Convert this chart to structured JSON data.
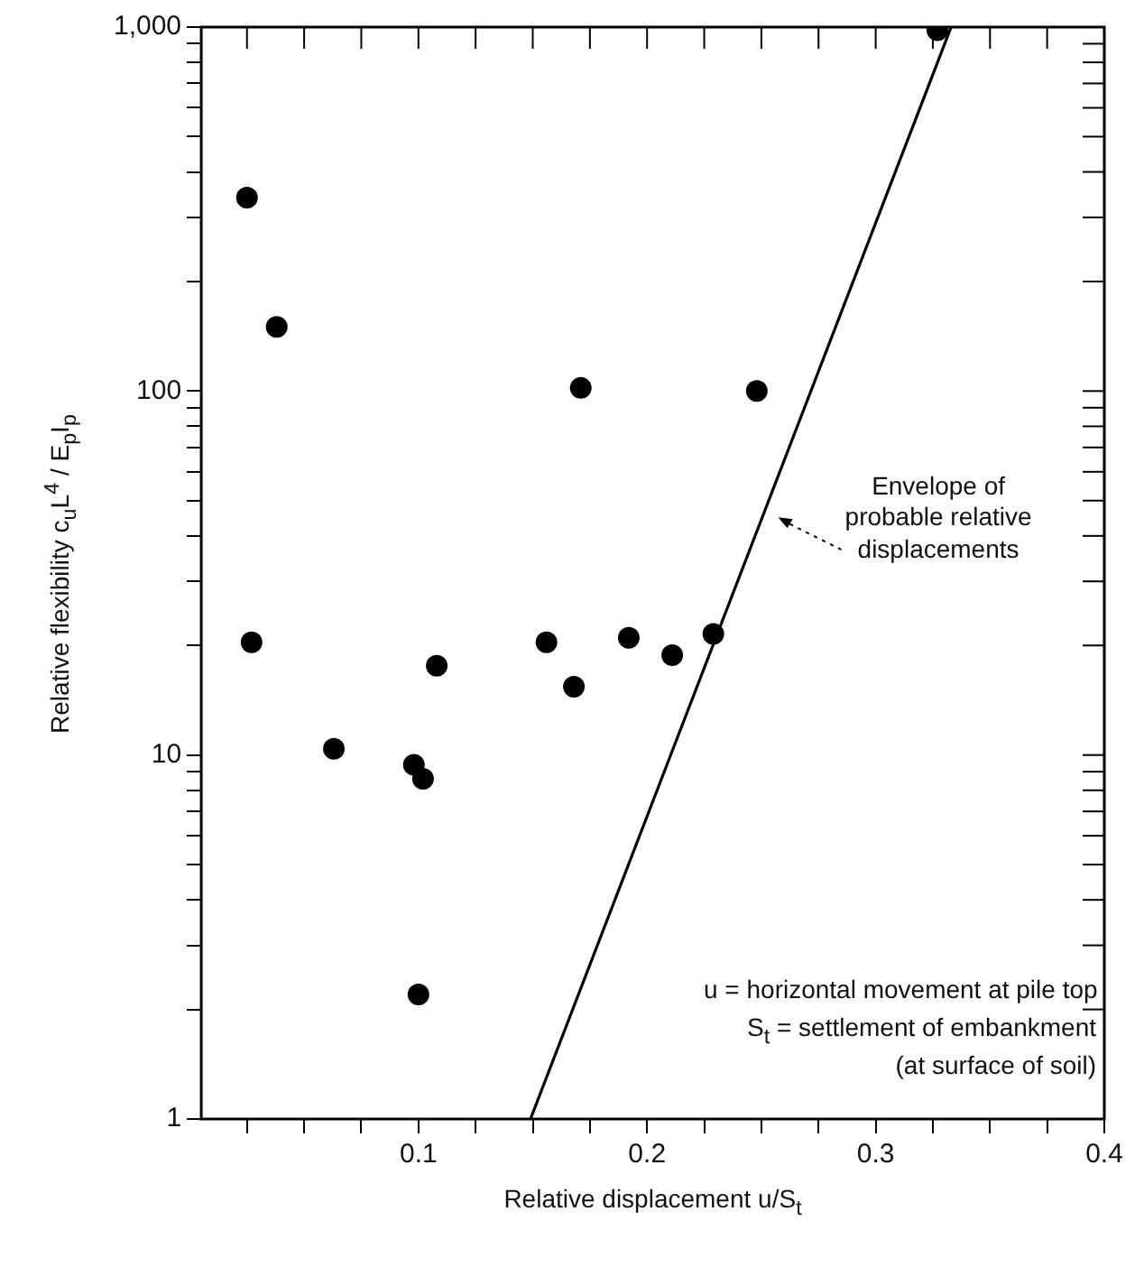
{
  "chart_data": {
    "type": "scatter",
    "xlabel": "Relative displacement u/S$_{t}$",
    "ylabel": "Relative flexibility  c$_{u}$L$^{4}$ / E$_{p}$I$_{p}$",
    "log": "y",
    "marker": "circle",
    "grid": false,
    "xlim": [
      0.005,
      0.4
    ],
    "ylim": [
      1,
      1000
    ],
    "xticks": [
      {
        "value": 0.025,
        "label": null
      },
      {
        "value": 0.05,
        "label": null
      },
      {
        "value": 0.075,
        "label": null
      },
      0.1,
      {
        "value": 0.125,
        "label": null
      },
      {
        "value": 0.15,
        "label": null
      },
      {
        "value": 0.175,
        "label": null
      },
      0.2,
      {
        "value": 0.225,
        "label": null
      },
      {
        "value": 0.25,
        "label": null
      },
      {
        "value": 0.275,
        "label": null
      },
      0.3,
      {
        "value": 0.325,
        "label": null
      },
      {
        "value": 0.35,
        "label": null
      },
      {
        "value": 0.375,
        "label": null
      },
      0.4
    ],
    "yticks": [
      1,
      {
        "value": 2,
        "label": null
      },
      {
        "value": 3,
        "label": null
      },
      {
        "value": 4,
        "label": null
      },
      {
        "value": 5,
        "label": null
      },
      {
        "value": 6,
        "label": null
      },
      {
        "value": 7,
        "label": null
      },
      {
        "value": 8,
        "label": null
      },
      {
        "value": 9,
        "label": null
      },
      10,
      {
        "value": 20,
        "label": null
      },
      {
        "value": 30,
        "label": null
      },
      {
        "value": 40,
        "label": null
      },
      {
        "value": 50,
        "label": null
      },
      {
        "value": 60,
        "label": null
      },
      {
        "value": 70,
        "label": null
      },
      {
        "value": 80,
        "label": null
      },
      {
        "value": 90,
        "label": null
      },
      100,
      {
        "value": 200,
        "label": null
      },
      {
        "value": 300,
        "label": null
      },
      {
        "value": 400,
        "label": null
      },
      {
        "value": 500,
        "label": null
      },
      {
        "value": 600,
        "label": null
      },
      {
        "value": 700,
        "label": null
      },
      {
        "value": 800,
        "label": null
      },
      {
        "value": 900,
        "label": null
      },
      {
        "value": 1000,
        "label": "1,000"
      }
    ],
    "series": [
      {
        "color": "#000000",
        "x": [
          0.025,
          0.038,
          0.171,
          0.248,
          0.327,
          0.027,
          0.063,
          0.098,
          0.102,
          0.108,
          0.1,
          0.156,
          0.168,
          0.192,
          0.211,
          0.229
        ],
        "values": [
          340,
          150,
          102,
          100,
          980,
          20.4,
          10.4,
          9.4,
          8.6,
          17.6,
          2.2,
          20.4,
          15.4,
          21,
          18.8,
          21.5
        ]
      },
      {
        "type": "line",
        "color": "#000000",
        "x": [
          0.149,
          0.333
        ],
        "values": [
          1,
          1000
        ],
        "marker": "none",
        "line_style": "solid"
      }
    ],
    "annotations": [
      {
        "text": "Envelope of\nprobable relative\ndisplacements",
        "x": 0.255,
        "y": 45
      },
      "u = horizontal movement at pile top",
      "S$_{t}$ = settlement of embankment\n(at surface of soil)"
    ]
  }
}
